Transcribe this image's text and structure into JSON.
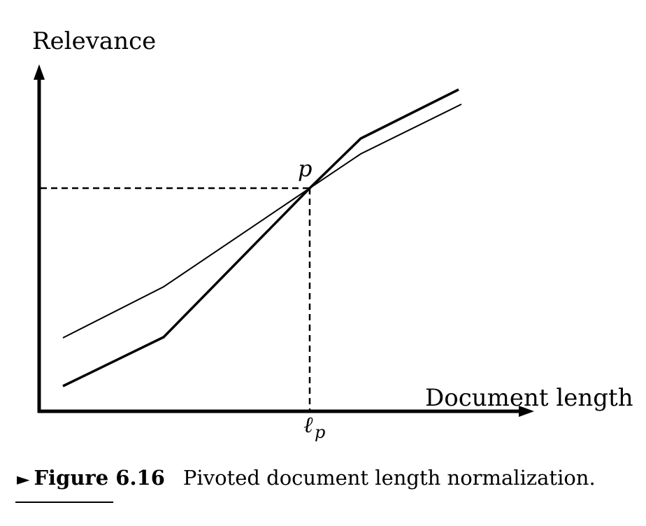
{
  "diagram": {
    "y_axis_label": "Relevance",
    "x_axis_label": "Document length",
    "pivot_point_label": "p",
    "pivot_length_label": "ℓ",
    "pivot_length_subscript": "p"
  },
  "caption": {
    "marker": "►",
    "figure_number": "Figure 6.16",
    "text": "Pivoted document length normalization."
  }
}
